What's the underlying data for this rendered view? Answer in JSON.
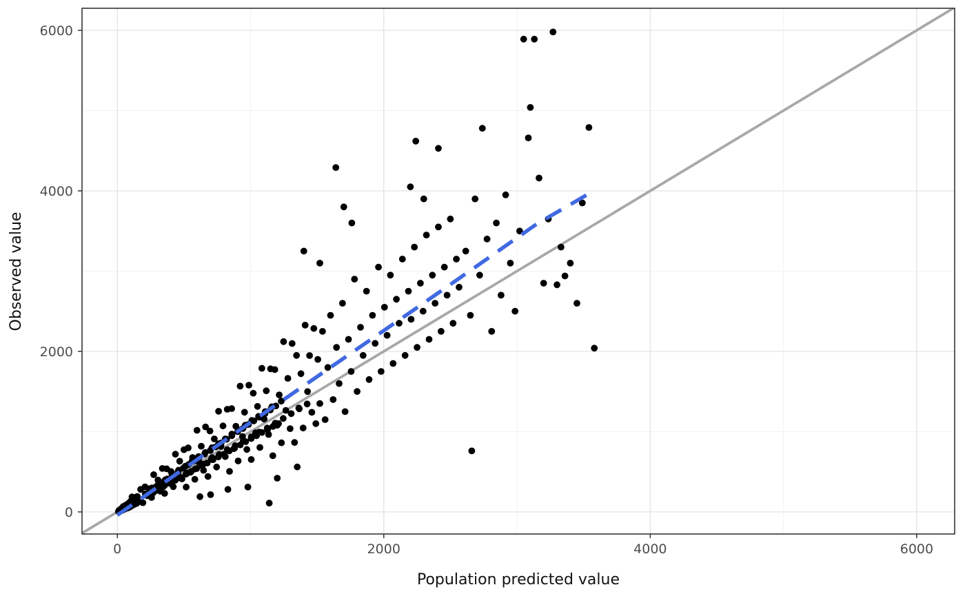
{
  "chart_data": {
    "type": "scatter",
    "title": "",
    "xlabel": "Population predicted value",
    "ylabel": "Observed value",
    "x_ticks": [
      0,
      2000,
      4000,
      6000
    ],
    "y_ticks": [
      0,
      2000,
      4000,
      6000
    ],
    "x_minor": [
      1000,
      3000,
      5000
    ],
    "y_minor": [
      1000,
      3000,
      5000
    ],
    "xlim": [
      -265,
      6285
    ],
    "ylim": [
      -275,
      6275
    ],
    "grid": true,
    "legend": false,
    "colors": {
      "point": "#000000",
      "identity_line": "#a8a8a8",
      "fit_line": "#4169e1",
      "grid_major": "#e3e3e3",
      "grid_minor": "#f1f1f1",
      "panel_border": "#333333",
      "tick_mark": "#333333",
      "tick_label": "#4d4d4d",
      "axis_title": "#111111"
    },
    "identity_line": {
      "style": "solid",
      "width": 3.8,
      "from": [
        -265,
        -265
      ],
      "to": [
        6285,
        6285
      ]
    },
    "fit_line": {
      "style": "dashed",
      "width": 5.5,
      "points": [
        [
          0,
          -40
        ],
        [
          450,
          480
        ],
        [
          900,
          1000
        ],
        [
          1350,
          1515
        ],
        [
          1800,
          2030
        ],
        [
          2250,
          2545
        ],
        [
          2700,
          3065
        ],
        [
          3150,
          3590
        ],
        [
          3560,
          3985
        ]
      ]
    },
    "points": [
      [
        8,
        5
      ],
      [
        12,
        18
      ],
      [
        15,
        8
      ],
      [
        18,
        25
      ],
      [
        22,
        12
      ],
      [
        25,
        15
      ],
      [
        30,
        42
      ],
      [
        40,
        22
      ],
      [
        48,
        62
      ],
      [
        55,
        35
      ],
      [
        62,
        82
      ],
      [
        68,
        45
      ],
      [
        75,
        96
      ],
      [
        82,
        52
      ],
      [
        90,
        115
      ],
      [
        95,
        62
      ],
      [
        100,
        132
      ],
      [
        105,
        76
      ],
      [
        112,
        150
      ],
      [
        118,
        86
      ],
      [
        125,
        162
      ],
      [
        130,
        96
      ],
      [
        138,
        176
      ],
      [
        145,
        106
      ],
      [
        150,
        192
      ],
      [
        45,
        68
      ],
      [
        62,
        56
      ],
      [
        78,
        94
      ],
      [
        95,
        66
      ],
      [
        110,
        187
      ],
      [
        128,
        128
      ],
      [
        143,
        186
      ],
      [
        160,
        128
      ],
      [
        175,
        280
      ],
      [
        192,
        115
      ],
      [
        208,
        312
      ],
      [
        225,
        202
      ],
      [
        240,
        288
      ],
      [
        257,
        180
      ],
      [
        273,
        464
      ],
      [
        290,
        290
      ],
      [
        305,
        397
      ],
      [
        322,
        258
      ],
      [
        338,
        541
      ],
      [
        355,
        231
      ],
      [
        370,
        537
      ],
      [
        388,
        369
      ],
      [
        403,
        504
      ],
      [
        420,
        315
      ],
      [
        436,
        719
      ],
      [
        453,
        476
      ],
      [
        468,
        632
      ],
      [
        485,
        412
      ],
      [
        500,
        775
      ],
      [
        517,
        310
      ],
      [
        532,
        798
      ],
      [
        550,
        495
      ],
      [
        565,
        678
      ],
      [
        582,
        407
      ],
      [
        598,
        1017
      ],
      [
        615,
        615
      ],
      [
        630,
        819
      ],
      [
        647,
        518
      ],
      [
        662,
        1059
      ],
      [
        680,
        442
      ],
      [
        695,
        1008
      ],
      [
        712,
        676
      ],
      [
        728,
        910
      ],
      [
        745,
        559
      ],
      [
        760,
        1254
      ],
      [
        778,
        817
      ],
      [
        793,
        1071
      ],
      [
        810,
        689
      ],
      [
        825,
        1279
      ],
      [
        842,
        505
      ],
      [
        858,
        1287
      ],
      [
        875,
        788
      ],
      [
        890,
        1068
      ],
      [
        907,
        635
      ],
      [
        922,
        1567
      ],
      [
        940,
        940
      ],
      [
        955,
        1242
      ],
      [
        972,
        778
      ],
      [
        987,
        1579
      ],
      [
        1005,
        653
      ],
      [
        1020,
        1479
      ],
      [
        1037,
        985
      ],
      [
        1052,
        1315
      ],
      [
        1070,
        803
      ],
      [
        1085,
        1790
      ],
      [
        1102,
        1157
      ],
      [
        1118,
        1509
      ],
      [
        1135,
        965
      ],
      [
        1150,
        1783
      ],
      [
        1167,
        700
      ],
      [
        1182,
        1773
      ],
      [
        1200,
        1080
      ],
      [
        1215,
        1458
      ],
      [
        1232,
        862
      ],
      [
        1248,
        2122
      ],
      [
        1265,
        1265
      ],
      [
        1280,
        1664
      ],
      [
        1297,
        1038
      ],
      [
        1312,
        2099
      ],
      [
        1330,
        865
      ],
      [
        1345,
        1950
      ],
      [
        1362,
        1294
      ],
      [
        1378,
        1723
      ],
      [
        1395,
        1046
      ],
      [
        1410,
        2327
      ],
      [
        1428,
        1499
      ],
      [
        1443,
        1948
      ],
      [
        1460,
        1241
      ],
      [
        1475,
        2286
      ],
      [
        210,
        225
      ],
      [
        230,
        210
      ],
      [
        250,
        270
      ],
      [
        270,
        240
      ],
      [
        295,
        320
      ],
      [
        315,
        280
      ],
      [
        335,
        365
      ],
      [
        355,
        330
      ],
      [
        375,
        410
      ],
      [
        395,
        355
      ],
      [
        415,
        455
      ],
      [
        435,
        395
      ],
      [
        455,
        500
      ],
      [
        475,
        430
      ],
      [
        495,
        545
      ],
      [
        515,
        470
      ],
      [
        535,
        590
      ],
      [
        555,
        505
      ],
      [
        575,
        635
      ],
      [
        595,
        540
      ],
      [
        615,
        680
      ],
      [
        635,
        575
      ],
      [
        655,
        720
      ],
      [
        675,
        610
      ],
      [
        698,
        765
      ],
      [
        718,
        650
      ],
      [
        738,
        810
      ],
      [
        758,
        685
      ],
      [
        780,
        860
      ],
      [
        800,
        720
      ],
      [
        820,
        905
      ],
      [
        840,
        760
      ],
      [
        860,
        950
      ],
      [
        880,
        795
      ],
      [
        903,
        1000
      ],
      [
        923,
        835
      ],
      [
        943,
        1040
      ],
      [
        963,
        875
      ],
      [
        985,
        1090
      ],
      [
        1005,
        915
      ],
      [
        1025,
        1135
      ],
      [
        1045,
        950
      ],
      [
        1065,
        1180
      ],
      [
        1085,
        990
      ],
      [
        1108,
        1225
      ],
      [
        1128,
        1025
      ],
      [
        1148,
        1270
      ],
      [
        1168,
        1065
      ],
      [
        1190,
        1320
      ],
      [
        1210,
        1100
      ],
      [
        260,
        300
      ],
      [
        310,
        350
      ],
      [
        360,
        400
      ],
      [
        410,
        460
      ],
      [
        460,
        520
      ],
      [
        510,
        570
      ],
      [
        560,
        630
      ],
      [
        610,
        690
      ],
      [
        660,
        740
      ],
      [
        710,
        800
      ],
      [
        760,
        850
      ],
      [
        810,
        910
      ],
      [
        860,
        970
      ],
      [
        910,
        1020
      ],
      [
        960,
        1080
      ],
      [
        1010,
        1140
      ],
      [
        1060,
        1190
      ],
      [
        1110,
        1250
      ],
      [
        1160,
        1310
      ],
      [
        1230,
        1380
      ],
      [
        285,
        265
      ],
      [
        345,
        315
      ],
      [
        405,
        375
      ],
      [
        465,
        425
      ],
      [
        525,
        485
      ],
      [
        585,
        535
      ],
      [
        645,
        595
      ],
      [
        705,
        655
      ],
      [
        765,
        715
      ],
      [
        825,
        775
      ],
      [
        885,
        825
      ],
      [
        945,
        885
      ],
      [
        1005,
        935
      ],
      [
        1065,
        995
      ],
      [
        1125,
        1045
      ],
      [
        1185,
        1105
      ],
      [
        1245,
        1165
      ],
      [
        1305,
        1225
      ],
      [
        1365,
        1285
      ],
      [
        1425,
        1345
      ],
      [
        1490,
        1100
      ],
      [
        1505,
        1900
      ],
      [
        1520,
        1350
      ],
      [
        1540,
        2250
      ],
      [
        1560,
        1150
      ],
      [
        1580,
        1800
      ],
      [
        1600,
        2450
      ],
      [
        1620,
        1400
      ],
      [
        1645,
        2050
      ],
      [
        1665,
        1600
      ],
      [
        1690,
        2600
      ],
      [
        1710,
        1250
      ],
      [
        1735,
        2150
      ],
      [
        1755,
        1750
      ],
      [
        1780,
        2900
      ],
      [
        1800,
        1500
      ],
      [
        1825,
        2300
      ],
      [
        1845,
        1950
      ],
      [
        1870,
        2750
      ],
      [
        1890,
        1650
      ],
      [
        1915,
        2450
      ],
      [
        1935,
        2100
      ],
      [
        1960,
        3050
      ],
      [
        1980,
        1750
      ],
      [
        2005,
        2550
      ],
      [
        2025,
        2200
      ],
      [
        2050,
        2950
      ],
      [
        2070,
        1850
      ],
      [
        2095,
        2650
      ],
      [
        2115,
        2350
      ],
      [
        2140,
        3150
      ],
      [
        2160,
        1950
      ],
      [
        2185,
        2750
      ],
      [
        2205,
        2400
      ],
      [
        2230,
        3300
      ],
      [
        2250,
        2050
      ],
      [
        2275,
        2850
      ],
      [
        2295,
        2500
      ],
      [
        2320,
        3450
      ],
      [
        2340,
        2150
      ],
      [
        2365,
        2950
      ],
      [
        2385,
        2600
      ],
      [
        2410,
        3550
      ],
      [
        2430,
        2250
      ],
      [
        2455,
        3050
      ],
      [
        2475,
        2700
      ],
      [
        2500,
        3650
      ],
      [
        2520,
        2350
      ],
      [
        2545,
        3150
      ],
      [
        2565,
        2800
      ],
      [
        2615,
        3250
      ],
      [
        2650,
        2450
      ],
      [
        2685,
        3900
      ],
      [
        2720,
        2950
      ],
      [
        2740,
        4780
      ],
      [
        2775,
        3400
      ],
      [
        2810,
        2250
      ],
      [
        2845,
        3600
      ],
      [
        2880,
        2700
      ],
      [
        2915,
        3950
      ],
      [
        2950,
        3100
      ],
      [
        2985,
        2500
      ],
      [
        3020,
        3500
      ],
      [
        3050,
        5890
      ],
      [
        3085,
        4660
      ],
      [
        3100,
        5040
      ],
      [
        3130,
        5890
      ],
      [
        3165,
        4160
      ],
      [
        3200,
        2850
      ],
      [
        3235,
        3650
      ],
      [
        3270,
        5980
      ],
      [
        3300,
        2830
      ],
      [
        3330,
        3300
      ],
      [
        3360,
        2940
      ],
      [
        3400,
        3100
      ],
      [
        3450,
        2600
      ],
      [
        3490,
        3850
      ],
      [
        3540,
        4790
      ],
      [
        3580,
        2040
      ],
      [
        2660,
        760
      ],
      [
        1400,
        3250
      ],
      [
        1640,
        4290
      ],
      [
        1700,
        3800
      ],
      [
        1760,
        3600
      ],
      [
        1520,
        3100
      ],
      [
        2240,
        4620
      ],
      [
        2410,
        4530
      ],
      [
        2200,
        4050
      ],
      [
        2300,
        3900
      ],
      [
        1140,
        110
      ],
      [
        1200,
        420
      ],
      [
        1350,
        560
      ],
      [
        980,
        310
      ],
      [
        830,
        280
      ],
      [
        700,
        215
      ],
      [
        620,
        190
      ]
    ]
  }
}
